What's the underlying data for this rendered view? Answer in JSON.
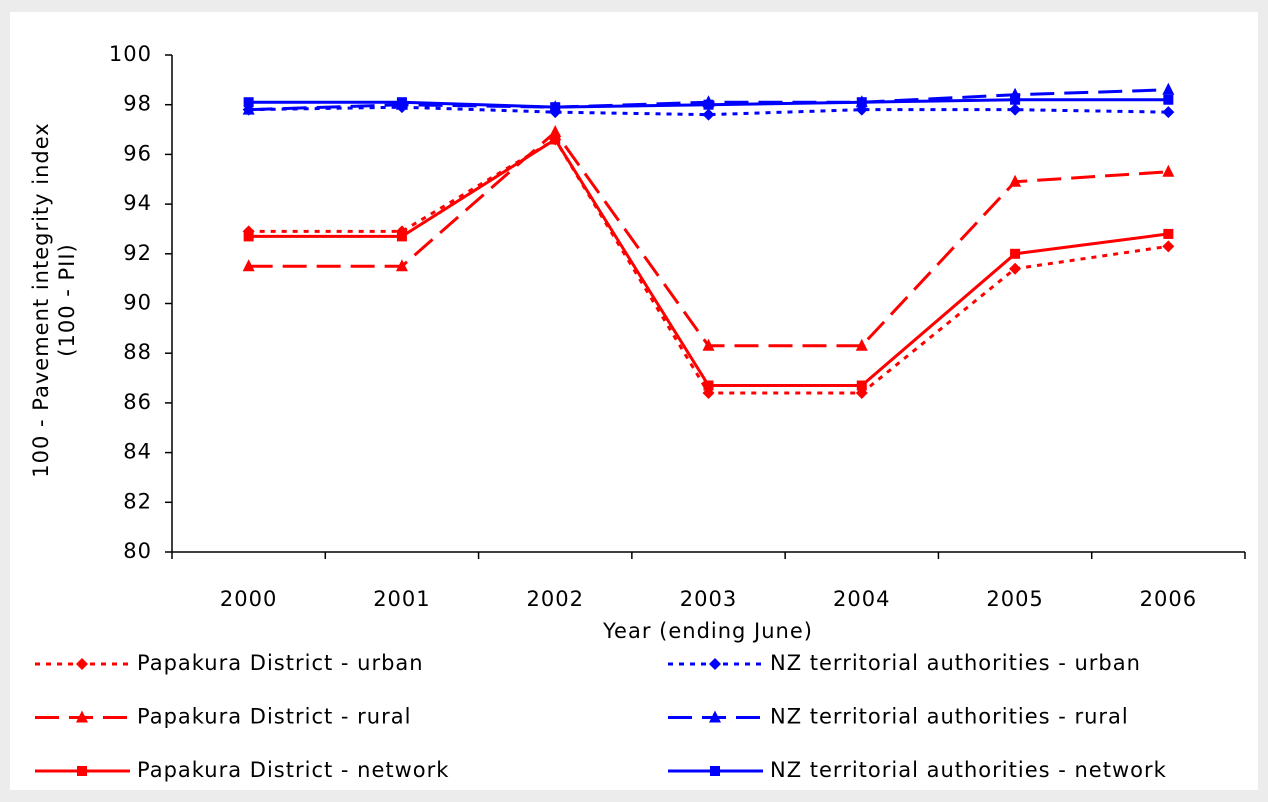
{
  "chart_data": {
    "type": "line",
    "y_label": [
      "100 - Pavement integrity index",
      "(100 - PII)"
    ],
    "x_label": "Year (ending June)",
    "categories": [
      "2000",
      "2001",
      "2002",
      "2003",
      "2004",
      "2005",
      "2006"
    ],
    "ylim": [
      80,
      100
    ],
    "yticks": [
      80,
      82,
      84,
      86,
      88,
      90,
      92,
      94,
      96,
      98,
      100
    ],
    "grid": false,
    "legend": "bottom",
    "series": [
      {
        "name": "Papakura District - urban",
        "color": "#ff0000",
        "dash": "dotted",
        "marker": "diamond",
        "values": [
          92.9,
          92.9,
          96.6,
          86.4,
          86.4,
          91.4,
          92.3
        ]
      },
      {
        "name": "Papakura District - rural",
        "color": "#ff0000",
        "dash": "dashed",
        "marker": "triangle",
        "values": [
          91.5,
          91.5,
          96.9,
          88.3,
          88.3,
          94.9,
          95.3
        ]
      },
      {
        "name": "Papakura District - network",
        "color": "#ff0000",
        "dash": "solid",
        "marker": "square",
        "values": [
          92.7,
          92.7,
          96.6,
          86.7,
          86.7,
          92.0,
          92.8
        ]
      },
      {
        "name": "NZ territorial authorities - urban",
        "color": "#0000ff",
        "dash": "dotted",
        "marker": "diamond",
        "values": [
          97.8,
          97.9,
          97.7,
          97.6,
          97.8,
          97.8,
          97.7
        ]
      },
      {
        "name": "NZ territorial authorities - rural",
        "color": "#0000ff",
        "dash": "dashed",
        "marker": "triangle",
        "values": [
          97.8,
          98.0,
          97.9,
          98.1,
          98.1,
          98.4,
          98.6
        ]
      },
      {
        "name": "NZ territorial authorities - network",
        "color": "#0000ff",
        "dash": "solid",
        "marker": "square",
        "values": [
          98.1,
          98.1,
          97.9,
          98.0,
          98.1,
          98.2,
          98.2
        ]
      }
    ]
  }
}
